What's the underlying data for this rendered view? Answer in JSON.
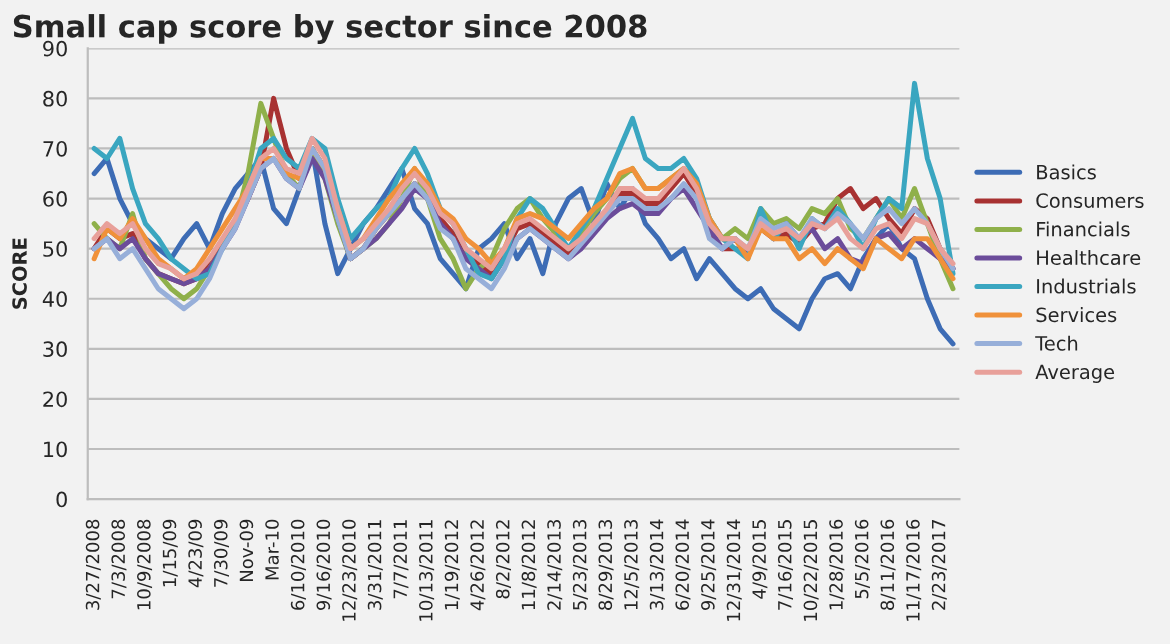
{
  "chart_data": {
    "type": "line",
    "title": "Small cap score by sector since 2008",
    "ylabel": "SCORE",
    "categories": [
      "3/27/2008",
      null,
      "7/3/2008",
      null,
      "10/9/2008",
      null,
      "1/15/09",
      null,
      "4/23/09",
      null,
      "7/30/09",
      null,
      "Nov-09",
      null,
      "Mar-10",
      null,
      "6/10/2010",
      null,
      "9/16/2010",
      null,
      "12/23/2010",
      null,
      "3/31/2011",
      null,
      "7/7/2011",
      null,
      "10/13/2011",
      null,
      "1/19/2012",
      null,
      "4/26/2012",
      null,
      "8/2/2012",
      null,
      "11/8/2012",
      null,
      "2/14/2013",
      null,
      "5/23/2013",
      null,
      "8/29/2013",
      null,
      "12/5/2013",
      null,
      "3/13/2014",
      null,
      "6/20/2014",
      null,
      "9/25/2014",
      null,
      "12/31/2014",
      null,
      "4/9/2015",
      null,
      "7/16/2015",
      null,
      "10/22/2015",
      null,
      "1/28/2016",
      null,
      "5/5/2016",
      null,
      "8/11/2016",
      null,
      "11/17/2016",
      null,
      "2/23/2017",
      null
    ],
    "series": [
      {
        "name": "Basics",
        "color": "#3d6cb5",
        "values": [
          65,
          68,
          60,
          55,
          52,
          50,
          48,
          52,
          55,
          50,
          57,
          62,
          65,
          68,
          58,
          55,
          62,
          70,
          55,
          45,
          50,
          55,
          58,
          62,
          66,
          58,
          55,
          48,
          45,
          42,
          50,
          52,
          55,
          48,
          52,
          45,
          55,
          60,
          62,
          55,
          63,
          58,
          62,
          55,
          52,
          48,
          50,
          44,
          48,
          45,
          42,
          40,
          42,
          38,
          36,
          34,
          40,
          44,
          45,
          42,
          48,
          52,
          55,
          50,
          48,
          40,
          34,
          31
        ]
      },
      {
        "name": "Consumers",
        "color": "#a83232",
        "values": [
          50,
          54,
          52,
          53,
          48,
          45,
          44,
          43,
          44,
          47,
          51,
          55,
          60,
          66,
          80,
          70,
          64,
          70,
          66,
          56,
          48,
          50,
          54,
          57,
          60,
          63,
          61,
          56,
          53,
          48,
          47,
          45,
          49,
          54,
          55,
          53,
          51,
          49,
          51,
          54,
          57,
          61,
          61,
          59,
          59,
          62,
          65,
          61,
          53,
          50,
          50,
          49,
          54,
          52,
          53,
          51,
          54,
          55,
          60,
          62,
          58,
          60,
          56,
          53,
          58,
          56,
          50,
          46
        ]
      },
      {
        "name": "Financials",
        "color": "#8fb04a",
        "values": [
          55,
          52,
          50,
          57,
          48,
          45,
          42,
          40,
          42,
          46,
          50,
          55,
          65,
          79,
          72,
          65,
          62,
          70,
          64,
          55,
          48,
          50,
          52,
          55,
          60,
          66,
          60,
          52,
          48,
          42,
          46,
          48,
          54,
          58,
          60,
          56,
          53,
          50,
          53,
          57,
          60,
          64,
          66,
          62,
          62,
          64,
          66,
          63,
          56,
          52,
          54,
          52,
          58,
          55,
          56,
          54,
          58,
          57,
          60,
          54,
          52,
          56,
          60,
          56,
          62,
          55,
          48,
          42
        ]
      },
      {
        "name": "Healthcare",
        "color": "#6b4c9a",
        "values": [
          50,
          52,
          50,
          52,
          48,
          45,
          44,
          43,
          44,
          46,
          50,
          54,
          60,
          66,
          68,
          64,
          62,
          68,
          64,
          56,
          48,
          50,
          52,
          55,
          58,
          62,
          60,
          55,
          52,
          48,
          46,
          44,
          48,
          52,
          54,
          52,
          50,
          48,
          50,
          53,
          56,
          58,
          59,
          57,
          57,
          60,
          62,
          58,
          54,
          50,
          52,
          49,
          56,
          52,
          55,
          52,
          54,
          50,
          52,
          48,
          47,
          52,
          53,
          50,
          52,
          50,
          48,
          46
        ]
      },
      {
        "name": "Industrials",
        "color": "#3aa6c0",
        "values": [
          70,
          68,
          72,
          62,
          55,
          52,
          48,
          46,
          44,
          45,
          50,
          55,
          62,
          70,
          72,
          68,
          66,
          72,
          70,
          60,
          52,
          55,
          58,
          60,
          66,
          70,
          65,
          58,
          55,
          50,
          45,
          44,
          48,
          56,
          60,
          58,
          54,
          50,
          54,
          58,
          64,
          70,
          76,
          68,
          66,
          66,
          68,
          64,
          56,
          52,
          50,
          48,
          58,
          52,
          55,
          50,
          56,
          54,
          58,
          55,
          50,
          56,
          60,
          58,
          83,
          68,
          60,
          45
        ]
      },
      {
        "name": "Services",
        "color": "#f0913a",
        "values": [
          48,
          54,
          52,
          56,
          52,
          48,
          46,
          44,
          46,
          50,
          54,
          58,
          62,
          68,
          68,
          65,
          64,
          70,
          66,
          58,
          50,
          52,
          56,
          60,
          63,
          66,
          63,
          58,
          56,
          52,
          50,
          47,
          50,
          56,
          57,
          56,
          54,
          52,
          55,
          58,
          60,
          65,
          66,
          62,
          62,
          64,
          66,
          63,
          56,
          52,
          52,
          48,
          54,
          52,
          52,
          48,
          50,
          47,
          50,
          48,
          46,
          52,
          50,
          48,
          52,
          52,
          48,
          44
        ]
      },
      {
        "name": "Tech",
        "color": "#97afd9",
        "values": [
          50,
          52,
          48,
          50,
          46,
          42,
          40,
          38,
          40,
          44,
          50,
          54,
          60,
          66,
          68,
          64,
          62,
          70,
          66,
          56,
          48,
          50,
          54,
          57,
          60,
          63,
          60,
          54,
          52,
          46,
          44,
          42,
          46,
          52,
          54,
          52,
          50,
          48,
          51,
          54,
          57,
          60,
          60,
          58,
          58,
          60,
          63,
          60,
          52,
          50,
          52,
          50,
          56,
          54,
          55,
          52,
          56,
          54,
          57,
          55,
          52,
          56,
          58,
          55,
          58,
          55,
          50,
          46
        ]
      },
      {
        "name": "Average",
        "color": "#e8a09a",
        "values": [
          52,
          55,
          53,
          55,
          50,
          47,
          46,
          44,
          45,
          48,
          52,
          56,
          62,
          68,
          70,
          66,
          65,
          72,
          68,
          58,
          50,
          52,
          55,
          58,
          62,
          65,
          62,
          57,
          55,
          50,
          48,
          46,
          50,
          55,
          56,
          54,
          52,
          50,
          52,
          55,
          58,
          62,
          62,
          60,
          60,
          63,
          66,
          62,
          55,
          52,
          52,
          50,
          55,
          53,
          54,
          52,
          55,
          54,
          56,
          52,
          50,
          54,
          55,
          52,
          56,
          55,
          50,
          47
        ]
      }
    ],
    "ylim": [
      0,
      90
    ],
    "yticks": [
      0,
      10,
      20,
      30,
      40,
      50,
      60,
      70,
      80,
      90
    ],
    "grid": "y",
    "legend": "right",
    "marker": "none",
    "line_style": "solid"
  }
}
